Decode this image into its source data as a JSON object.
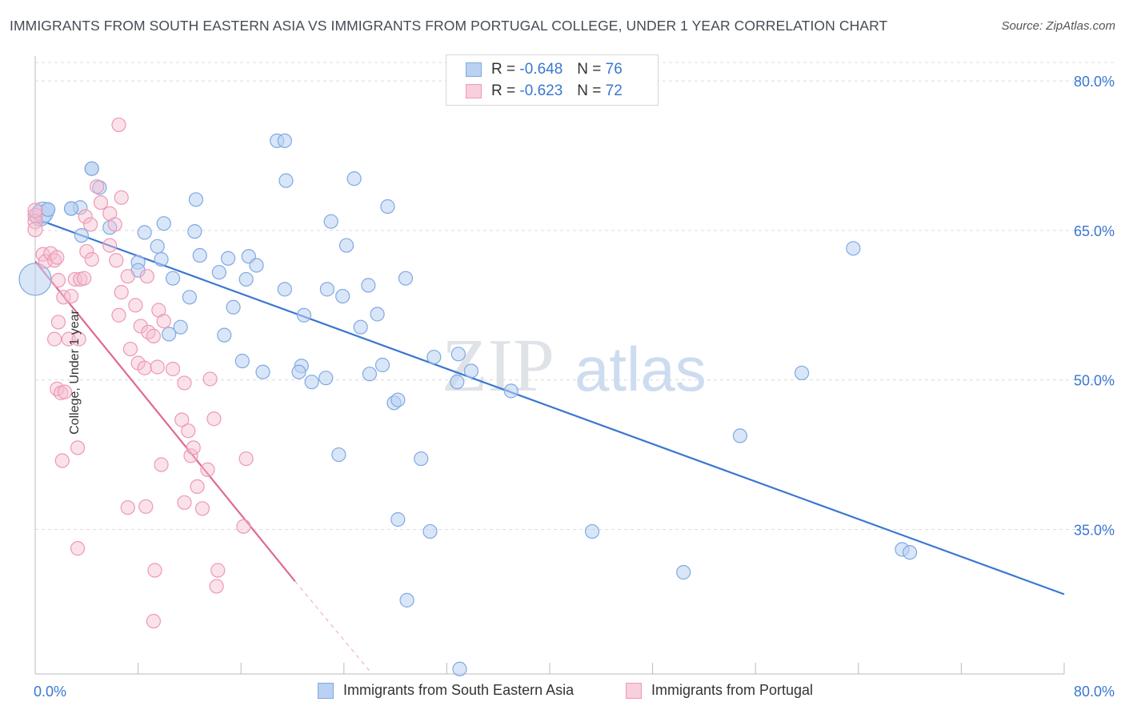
{
  "title": "IMMIGRANTS FROM SOUTH EASTERN ASIA VS IMMIGRANTS FROM PORTUGAL COLLEGE, UNDER 1 YEAR CORRELATION CHART",
  "source": "Source: ZipAtlas.com",
  "watermark": {
    "zip": "ZIP",
    "atlas": "atlas"
  },
  "colors": {
    "blue": "#3a77d0",
    "blue_fill": "#b9d1f2",
    "pink": "#e06892",
    "pink_fill": "#f5bfd0",
    "grid": "#dcdcdc"
  },
  "legend": {
    "rows": [
      {
        "r_label": "R =",
        "r_value": "-0.648",
        "n_label": "N =",
        "n_value": "76"
      },
      {
        "r_label": "R =",
        "r_value": "-0.623",
        "n_label": "N =",
        "n_value": "72"
      }
    ]
  },
  "chart_data": {
    "type": "scatter",
    "title": "IMMIGRANTS FROM SOUTH EASTERN ASIA VS IMMIGRANTS FROM PORTUGAL COLLEGE, UNDER 1 YEAR CORRELATION CHART",
    "xlabel": "",
    "ylabel": "College, Under 1 year",
    "xlim": [
      0,
      80
    ],
    "ylim": [
      20.5,
      82.5
    ],
    "x_tick_labels": [
      "0.0%",
      "80.0%"
    ],
    "y_ticks": [
      35,
      50,
      65,
      80
    ],
    "y_tick_labels": [
      "35.0%",
      "50.0%",
      "65.0%",
      "80.0%"
    ],
    "grid": true,
    "legend_position": "top-center",
    "series": [
      {
        "name": "Immigrants from South Eastern Asia",
        "color": "#3a77d0",
        "trend": {
          "x": [
            0,
            80
          ],
          "y": [
            66.2,
            28.5
          ]
        },
        "points": [
          [
            0.0,
            60.1
          ],
          [
            0.4,
            66.5
          ],
          [
            0.6,
            66.8
          ],
          [
            1.0,
            67.1
          ],
          [
            2.8,
            67.2
          ],
          [
            3.5,
            67.3
          ],
          [
            4.4,
            71.2
          ],
          [
            5.0,
            69.3
          ],
          [
            5.8,
            65.3
          ],
          [
            3.6,
            64.5
          ],
          [
            8.5,
            64.8
          ],
          [
            9.5,
            63.4
          ],
          [
            10.0,
            65.7
          ],
          [
            12.5,
            68.1
          ],
          [
            12.4,
            64.9
          ],
          [
            8.0,
            61.8
          ],
          [
            8.0,
            61.0
          ],
          [
            9.8,
            62.1
          ],
          [
            10.7,
            60.2
          ],
          [
            12.0,
            58.3
          ],
          [
            12.8,
            62.5
          ],
          [
            14.3,
            60.8
          ],
          [
            15.0,
            62.2
          ],
          [
            16.6,
            62.4
          ],
          [
            17.2,
            61.5
          ],
          [
            16.4,
            60.1
          ],
          [
            15.4,
            57.3
          ],
          [
            14.7,
            54.5
          ],
          [
            11.3,
            55.3
          ],
          [
            10.4,
            54.6
          ],
          [
            19.4,
            59.1
          ],
          [
            18.8,
            74.0
          ],
          [
            19.5,
            70.0
          ],
          [
            23.0,
            65.9
          ],
          [
            24.2,
            63.5
          ],
          [
            22.7,
            59.1
          ],
          [
            23.9,
            58.4
          ],
          [
            20.9,
            56.5
          ],
          [
            27.4,
            67.4
          ],
          [
            24.8,
            70.2
          ],
          [
            25.9,
            59.5
          ],
          [
            25.3,
            55.3
          ],
          [
            28.8,
            60.2
          ],
          [
            26.6,
            56.6
          ],
          [
            16.1,
            51.9
          ],
          [
            17.7,
            50.8
          ],
          [
            20.7,
            51.4
          ],
          [
            20.5,
            50.8
          ],
          [
            21.5,
            49.8
          ],
          [
            22.6,
            50.2
          ],
          [
            26.0,
            50.6
          ],
          [
            27.0,
            51.5
          ],
          [
            27.9,
            47.7
          ],
          [
            28.2,
            48.0
          ],
          [
            31.0,
            52.3
          ],
          [
            32.9,
            52.6
          ],
          [
            32.8,
            49.8
          ],
          [
            33.9,
            50.9
          ],
          [
            37.0,
            48.9
          ],
          [
            23.6,
            42.5
          ],
          [
            30.0,
            42.1
          ],
          [
            28.2,
            36.0
          ],
          [
            28.9,
            27.9
          ],
          [
            30.7,
            34.8
          ],
          [
            33.0,
            21.0
          ],
          [
            43.3,
            34.8
          ],
          [
            50.4,
            30.7
          ],
          [
            54.8,
            44.4
          ],
          [
            59.6,
            50.7
          ],
          [
            63.6,
            63.2
          ],
          [
            67.4,
            33.0
          ],
          [
            68.0,
            32.7
          ],
          [
            19.4,
            74.0
          ],
          [
            4.4,
            71.2
          ],
          [
            1.0,
            67.1
          ],
          [
            2.8,
            67.2
          ]
        ]
      },
      {
        "name": "Immigrants from Portugal",
        "color": "#e06892",
        "trend": {
          "x": [
            0,
            20.2
          ],
          "y": [
            61.9,
            29.8
          ]
        },
        "trend_dashed": {
          "x": [
            20.2,
            26
          ],
          "y": [
            29.8,
            20.8
          ]
        },
        "points": [
          [
            0.0,
            66.5
          ],
          [
            0.0,
            65.9
          ],
          [
            0.0,
            65.1
          ],
          [
            0.0,
            67.0
          ],
          [
            0.6,
            62.6
          ],
          [
            0.8,
            61.9
          ],
          [
            1.2,
            62.7
          ],
          [
            1.5,
            62.0
          ],
          [
            1.7,
            62.3
          ],
          [
            1.8,
            60.0
          ],
          [
            2.2,
            58.3
          ],
          [
            2.8,
            58.4
          ],
          [
            3.1,
            60.1
          ],
          [
            3.5,
            60.1
          ],
          [
            3.8,
            60.2
          ],
          [
            3.9,
            66.4
          ],
          [
            4.3,
            65.6
          ],
          [
            4.0,
            62.9
          ],
          [
            4.4,
            62.1
          ],
          [
            4.8,
            69.4
          ],
          [
            5.1,
            67.8
          ],
          [
            5.8,
            66.7
          ],
          [
            6.2,
            65.6
          ],
          [
            5.8,
            63.5
          ],
          [
            6.3,
            62.0
          ],
          [
            6.7,
            58.8
          ],
          [
            6.5,
            56.5
          ],
          [
            7.2,
            60.4
          ],
          [
            7.8,
            57.5
          ],
          [
            8.7,
            60.4
          ],
          [
            9.6,
            57.0
          ],
          [
            10.0,
            55.9
          ],
          [
            8.2,
            55.4
          ],
          [
            8.8,
            54.8
          ],
          [
            9.2,
            54.4
          ],
          [
            7.4,
            53.1
          ],
          [
            8.0,
            51.7
          ],
          [
            8.5,
            51.2
          ],
          [
            9.5,
            51.3
          ],
          [
            10.7,
            51.1
          ],
          [
            11.6,
            49.7
          ],
          [
            13.6,
            50.1
          ],
          [
            11.4,
            46.0
          ],
          [
            11.9,
            44.9
          ],
          [
            12.1,
            42.4
          ],
          [
            12.3,
            43.2
          ],
          [
            13.9,
            46.1
          ],
          [
            13.4,
            41.0
          ],
          [
            12.6,
            39.3
          ],
          [
            13.0,
            37.1
          ],
          [
            9.8,
            41.5
          ],
          [
            11.6,
            37.7
          ],
          [
            8.6,
            37.3
          ],
          [
            7.2,
            37.2
          ],
          [
            16.4,
            42.1
          ],
          [
            16.2,
            35.3
          ],
          [
            14.2,
            30.9
          ],
          [
            14.1,
            29.3
          ],
          [
            9.3,
            30.9
          ],
          [
            9.2,
            25.8
          ],
          [
            3.3,
            33.1
          ],
          [
            3.3,
            43.2
          ],
          [
            2.1,
            41.9
          ],
          [
            1.7,
            49.1
          ],
          [
            2.0,
            48.7
          ],
          [
            2.3,
            48.8
          ],
          [
            2.6,
            54.1
          ],
          [
            3.4,
            54.1
          ],
          [
            1.5,
            54.1
          ],
          [
            1.8,
            55.8
          ],
          [
            6.5,
            75.6
          ],
          [
            6.7,
            68.3
          ]
        ]
      }
    ]
  },
  "bottom_legend": [
    "Immigrants from South Eastern Asia",
    "Immigrants from Portugal"
  ]
}
